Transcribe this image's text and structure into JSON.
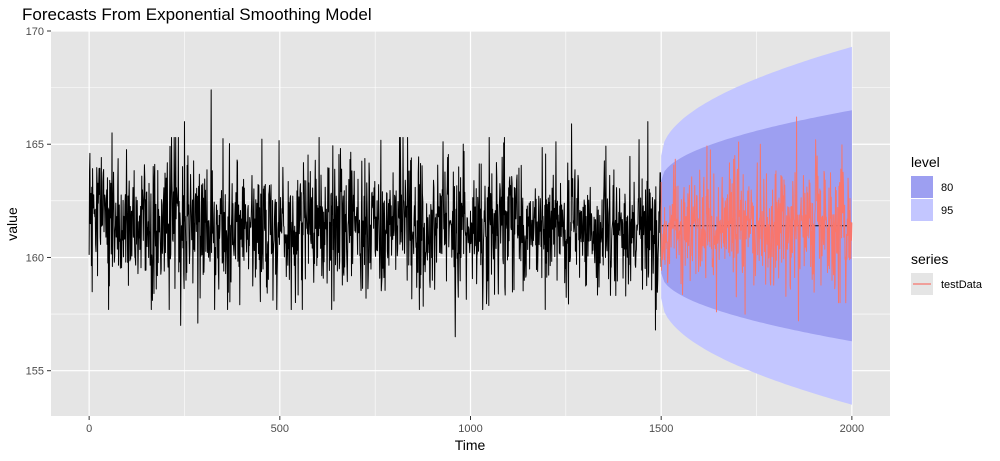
{
  "chart_data": {
    "type": "line",
    "title": "Forecasts From Exponential Smoothing Model",
    "xlabel": "Time",
    "ylabel": "value",
    "xlim": [
      -100,
      2100
    ],
    "ylim": [
      153,
      170
    ],
    "x_ticks": [
      0,
      500,
      1000,
      1500,
      2000
    ],
    "y_ticks": [
      155,
      160,
      165,
      170
    ],
    "x_tick_labels": [
      "0",
      "500",
      "1000",
      "1500",
      "2000"
    ],
    "y_tick_labels": [
      "155",
      "160",
      "165",
      "170"
    ],
    "grid": true,
    "legend_position": "right",
    "training_series": {
      "color": "#000000",
      "x_start": 0,
      "x_end": 1500,
      "center": 161.4,
      "typical_range": [
        158.5,
        164.5
      ],
      "peaks": [
        {
          "x": 320,
          "y": 167.4
        },
        {
          "x": 250,
          "y": 166.0
        },
        {
          "x": 60,
          "y": 165.5
        },
        {
          "x": 1265,
          "y": 165.9
        },
        {
          "x": 1465,
          "y": 166.0
        }
      ],
      "troughs": [
        {
          "x": 240,
          "y": 157.0
        },
        {
          "x": 285,
          "y": 157.1
        },
        {
          "x": 960,
          "y": 156.5
        },
        {
          "x": 1485,
          "y": 156.8
        }
      ]
    },
    "forecast": {
      "point": 161.4,
      "bands": [
        {
          "level": "95",
          "color": "#c3c6ff",
          "x": [
            1500,
            2000
          ],
          "lower": [
            158.2,
            153.5
          ],
          "upper": [
            164.5,
            169.3
          ]
        },
        {
          "level": "80",
          "color": "#9d9ff1",
          "x": [
            1500,
            2000
          ],
          "lower": [
            159.3,
            156.3
          ],
          "upper": [
            163.4,
            166.5
          ]
        }
      ]
    },
    "series": [
      {
        "name": "testData",
        "color": "#f8766d",
        "x_start": 1500,
        "x_end": 2000,
        "center": 161.4,
        "typical_range": [
          158.8,
          164.3
        ],
        "peaks": [
          {
            "x": 1855,
            "y": 166.2
          },
          {
            "x": 1905,
            "y": 165.2
          },
          {
            "x": 1760,
            "y": 165.0
          }
        ],
        "troughs": [
          {
            "x": 1645,
            "y": 157.6
          },
          {
            "x": 1860,
            "y": 157.2
          },
          {
            "x": 1720,
            "y": 157.5
          }
        ]
      }
    ],
    "legends": [
      {
        "title": "level",
        "items": [
          {
            "label": "80",
            "color": "#9d9ff1"
          },
          {
            "label": "95",
            "color": "#c3c6ff"
          }
        ]
      },
      {
        "title": "series",
        "items": [
          {
            "label": "testData",
            "color": "#f8766d"
          }
        ]
      }
    ]
  },
  "colors": {
    "panel_background": "#e5e5e5",
    "grid": "#ffffff"
  }
}
